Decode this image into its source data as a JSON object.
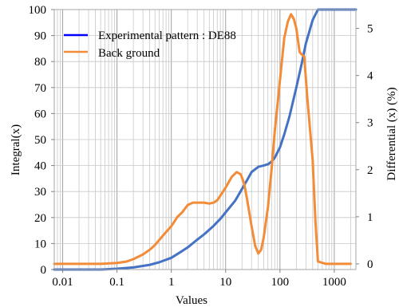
{
  "chart_data": {
    "type": "line",
    "xlabel": "Values",
    "ylabel_left": "Integral(x)",
    "ylabel_right": "Differential (x) (%)",
    "x_scale": "log",
    "xlim": [
      0.007,
      2500
    ],
    "ylim_left": [
      0,
      100
    ],
    "ylim_right": [
      -0.12,
      5.4
    ],
    "grid": "vertical log grid",
    "legend_placement": "top-left",
    "x_ticks": [
      {
        "value": 0.01,
        "label": "0.01"
      },
      {
        "value": 0.1,
        "label": "0.1"
      },
      {
        "value": 1,
        "label": "1"
      },
      {
        "value": 10,
        "label": "10"
      },
      {
        "value": 100,
        "label": "100"
      },
      {
        "value": 1000,
        "label": "1000"
      }
    ],
    "y_left_ticks": [
      {
        "value": 0,
        "label": "0"
      },
      {
        "value": 10,
        "label": "10"
      },
      {
        "value": 20,
        "label": "20"
      },
      {
        "value": 30,
        "label": "30"
      },
      {
        "value": 40,
        "label": "40"
      },
      {
        "value": 50,
        "label": "50"
      },
      {
        "value": 60,
        "label": "60"
      },
      {
        "value": 70,
        "label": "70"
      },
      {
        "value": 80,
        "label": "80"
      },
      {
        "value": 90,
        "label": "90"
      },
      {
        "value": 100,
        "label": "100"
      }
    ],
    "y_right_ticks": [
      {
        "value": 0,
        "label": "0"
      },
      {
        "value": 1,
        "label": "1"
      },
      {
        "value": 2,
        "label": "2"
      },
      {
        "value": 3,
        "label": "3"
      },
      {
        "value": 4,
        "label": "4"
      },
      {
        "value": 5,
        "label": "5"
      }
    ],
    "series": [
      {
        "name": "Experimental pattern : DE88",
        "color": "#4472c4",
        "axis": "left",
        "x": [
          0.007,
          0.05,
          0.1,
          0.2,
          0.4,
          0.6,
          1,
          1.5,
          2,
          3,
          4,
          6,
          8,
          10,
          15,
          20,
          25,
          30,
          40,
          50,
          60,
          70,
          80,
          100,
          120,
          150,
          200,
          250,
          300,
          400,
          500,
          700,
          1000,
          2500
        ],
        "y": [
          0,
          0,
          0.3,
          0.8,
          1.8,
          2.8,
          4.5,
          6.8,
          8.5,
          11.5,
          13.5,
          16.8,
          19.5,
          22,
          26.5,
          31,
          34.5,
          37.5,
          39.5,
          40,
          40.5,
          41.5,
          43,
          47,
          52,
          59,
          70,
          79,
          87,
          96,
          100,
          100,
          100,
          100
        ]
      },
      {
        "name": "Back ground",
        "color": "#f28c38",
        "axis": "right",
        "x": [
          0.007,
          0.05,
          0.1,
          0.15,
          0.2,
          0.3,
          0.4,
          0.5,
          0.7,
          1,
          1.3,
          1.6,
          2,
          2.5,
          3,
          4,
          5,
          6,
          7,
          8,
          10,
          13,
          16,
          19,
          22,
          25,
          30,
          35,
          40,
          45,
          50,
          60,
          70,
          80,
          100,
          120,
          140,
          160,
          180,
          200,
          230,
          250,
          280,
          320,
          400,
          450,
          500,
          700,
          1000,
          2000
        ],
        "y": [
          0,
          0,
          0.02,
          0.05,
          0.1,
          0.2,
          0.3,
          0.4,
          0.6,
          0.8,
          1.0,
          1.1,
          1.25,
          1.3,
          1.3,
          1.3,
          1.28,
          1.3,
          1.35,
          1.45,
          1.62,
          1.85,
          1.95,
          1.9,
          1.7,
          1.35,
          0.8,
          0.38,
          0.22,
          0.3,
          0.55,
          1.2,
          2.0,
          2.8,
          3.9,
          4.8,
          5.15,
          5.3,
          5.2,
          5.0,
          4.5,
          4.45,
          4.4,
          3.5,
          2.2,
          0.9,
          0.05,
          0,
          0,
          0
        ]
      }
    ]
  }
}
